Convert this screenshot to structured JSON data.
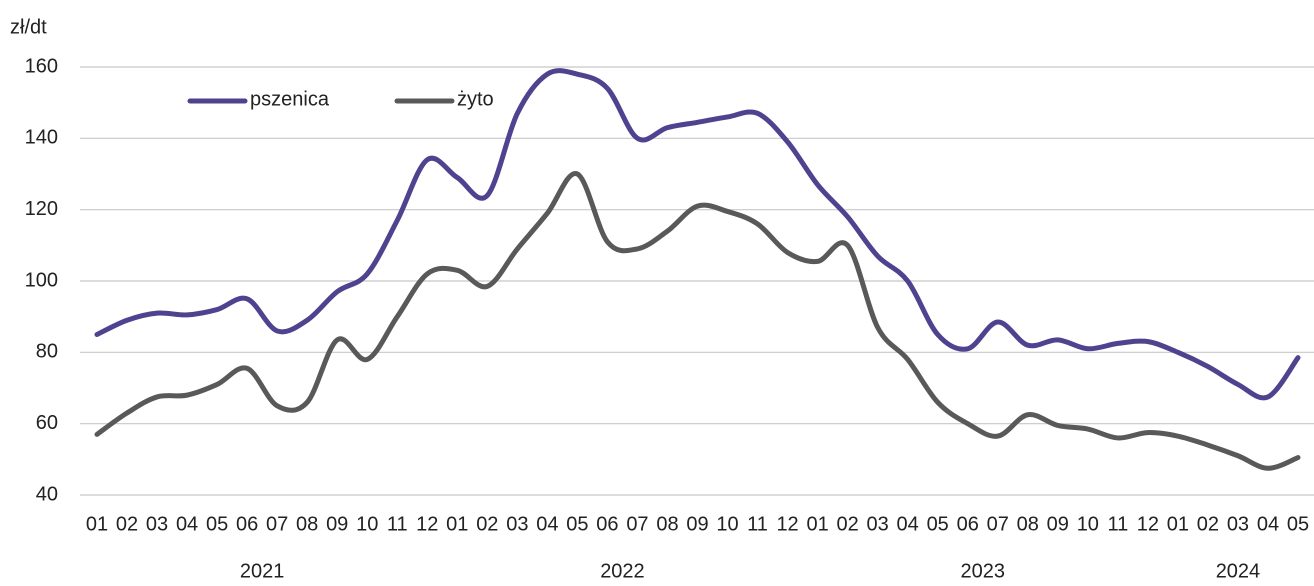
{
  "chart_data": {
    "type": "line",
    "unit_label": "zł/dt",
    "groups": [
      {
        "label": "2021",
        "categories": [
          "01",
          "02",
          "03",
          "04",
          "05",
          "06",
          "07",
          "08",
          "09",
          "10",
          "11",
          "12"
        ]
      },
      {
        "label": "2022",
        "categories": [
          "01",
          "02",
          "03",
          "04",
          "05",
          "06",
          "07",
          "08",
          "09",
          "10",
          "11",
          "12"
        ]
      },
      {
        "label": "2023",
        "categories": [
          "01",
          "02",
          "03",
          "04",
          "05",
          "06",
          "07",
          "08",
          "09",
          "10",
          "11",
          "12"
        ]
      },
      {
        "label": "2024",
        "categories": [
          "01",
          "02",
          "03",
          "04",
          "05"
        ]
      }
    ],
    "series": [
      {
        "name": "pszenica",
        "color": "#4f438f",
        "values": [
          85,
          89,
          91,
          90.5,
          92,
          95,
          86,
          89,
          97,
          102,
          117,
          134,
          129,
          124,
          147,
          158,
          158,
          154,
          140,
          143,
          144.5,
          146,
          147,
          139,
          127,
          118,
          107,
          100,
          85,
          81,
          88.5,
          82,
          83.5,
          81,
          82.5,
          83,
          80,
          76,
          71,
          67.5,
          78.5
        ]
      },
      {
        "name": "żyto",
        "color": "#595959",
        "values": [
          57,
          63,
          67.5,
          68,
          71,
          75.5,
          65,
          66,
          83.5,
          78,
          90,
          102,
          103,
          98.5,
          109,
          119,
          130,
          111,
          109,
          114,
          121,
          119.5,
          116,
          108,
          105.5,
          110,
          87,
          78,
          66,
          60,
          56.5,
          62.5,
          59.5,
          58.5,
          56,
          57.5,
          56.5,
          54,
          51,
          47.5,
          50.5
        ]
      }
    ],
    "ylim": [
      40,
      160
    ],
    "yticks": [
      40,
      60,
      80,
      100,
      120,
      140,
      160
    ],
    "grid": true,
    "legend": "top-left"
  }
}
